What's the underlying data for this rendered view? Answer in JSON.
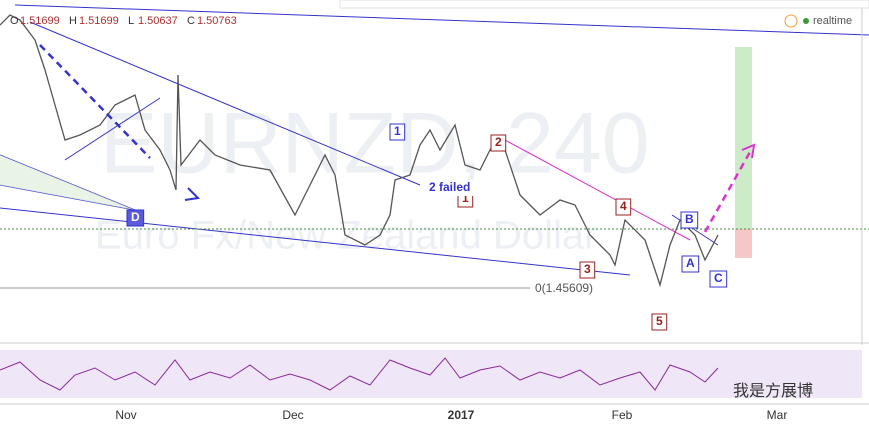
{
  "header": {
    "ohlc": [
      {
        "key": "O",
        "value": "1.51699"
      },
      {
        "key": "H",
        "value": "1.51699"
      },
      {
        "key": "L",
        "value": "1.50637"
      },
      {
        "key": "C",
        "value": "1.50763"
      }
    ],
    "status": "realtime"
  },
  "watermark": {
    "symbol": "EURNZD, 240",
    "description": "Euro Fx/New Zealand Dollar"
  },
  "wave_labels": [
    "1",
    "2",
    "3",
    "4",
    "5",
    "1",
    "2 failed",
    "A",
    "B",
    "C",
    "D"
  ],
  "fib_label": "0(1.45609)",
  "x_axis": [
    "Nov",
    "Dec",
    "2017",
    "Feb",
    "Mar"
  ],
  "footer": "我是方展博"
}
